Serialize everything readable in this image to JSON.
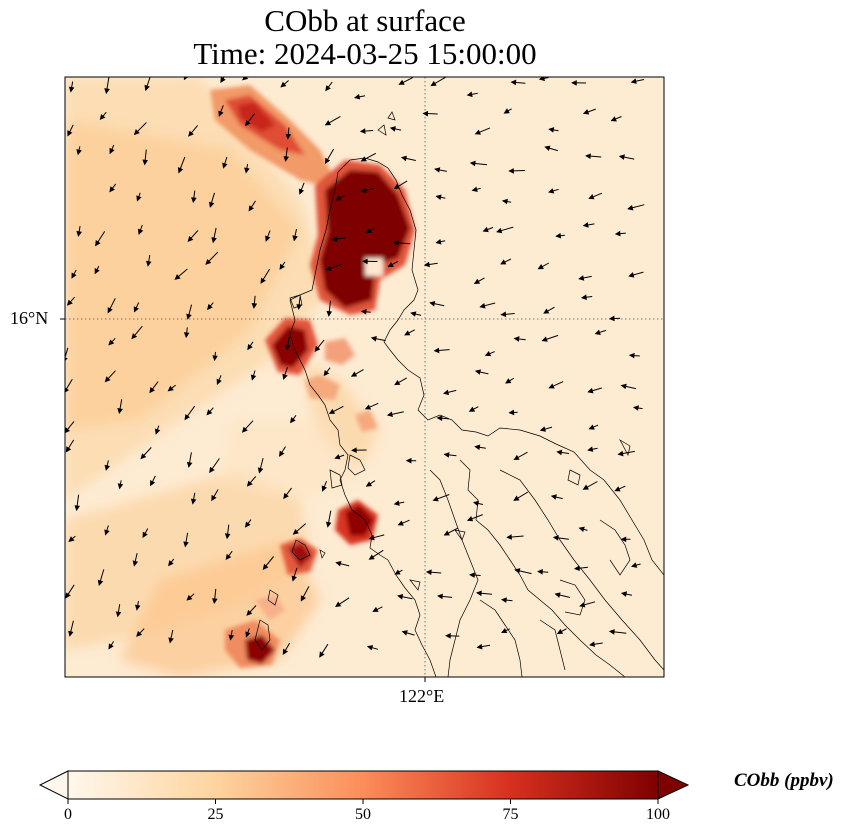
{
  "title": {
    "line1": "CObb at surface",
    "line2": "Time: 2024-03-25 15:00:00"
  },
  "axes": {
    "lat_label": "16°N",
    "lon_label": "122°E"
  },
  "colorbar": {
    "label": "CObb (ppbv)",
    "min": 0,
    "max": 100,
    "ticks": [
      "0",
      "25",
      "50",
      "75",
      "100"
    ],
    "colors": [
      "#fff7ec",
      "#fdd49e",
      "#fc8d59",
      "#d7301f",
      "#7f0000"
    ]
  },
  "map": {
    "background_color": "#fdebd2",
    "coastline_color": "#000000",
    "gridline_style": "dotted",
    "features": [
      "CObb concentration field",
      "wind vectors",
      "coastlines"
    ]
  }
}
